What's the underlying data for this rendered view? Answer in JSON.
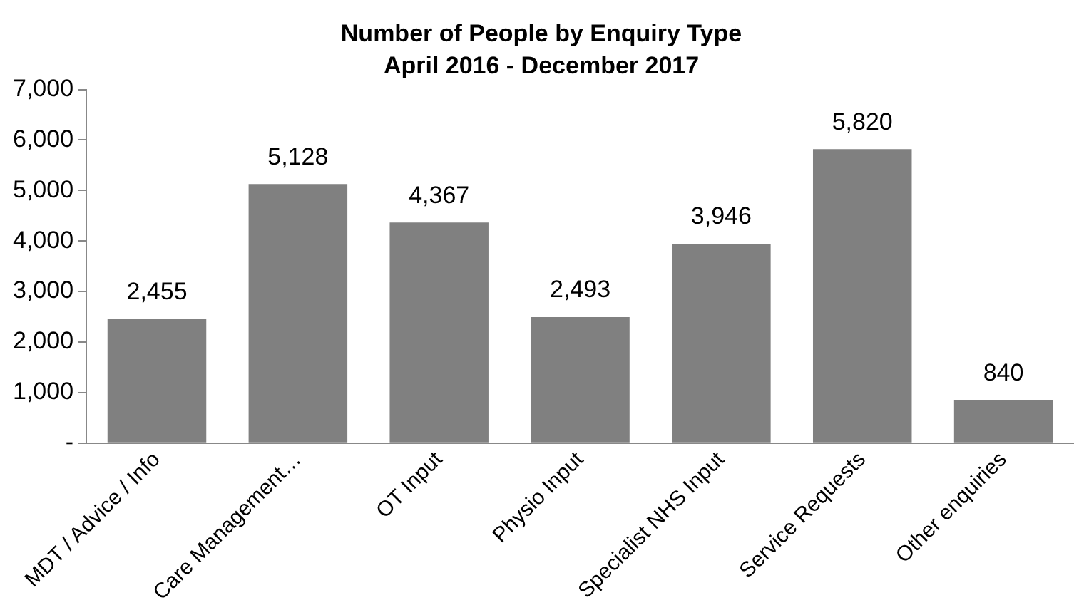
{
  "chart_data": {
    "type": "bar",
    "title": "Number of People by Enquiry Type",
    "subtitle": "April 2016 - December 2017",
    "categories": [
      "MDT / Advice / Info",
      "Care Management…",
      "OT Input",
      "Physio Input",
      "Specialist NHS Input",
      "Service Requests",
      "Other enquiries"
    ],
    "values": [
      2455,
      5128,
      4367,
      2493,
      3946,
      5820,
      840
    ],
    "value_labels": [
      "2,455",
      "5,128",
      "4,367",
      "2,493",
      "3,946",
      "5,820",
      "840"
    ],
    "color": "#808080",
    "ylim": [
      0,
      7000
    ],
    "yticks": [
      {
        "value": 0,
        "label": "-"
      },
      {
        "value": 1000,
        "label": "1,000"
      },
      {
        "value": 2000,
        "label": "2,000"
      },
      {
        "value": 3000,
        "label": "3,000"
      },
      {
        "value": 4000,
        "label": "4,000"
      },
      {
        "value": 5000,
        "label": "5,000"
      },
      {
        "value": 6000,
        "label": "6,000"
      },
      {
        "value": 7000,
        "label": "7,000"
      }
    ],
    "grid": false,
    "legend": false
  }
}
